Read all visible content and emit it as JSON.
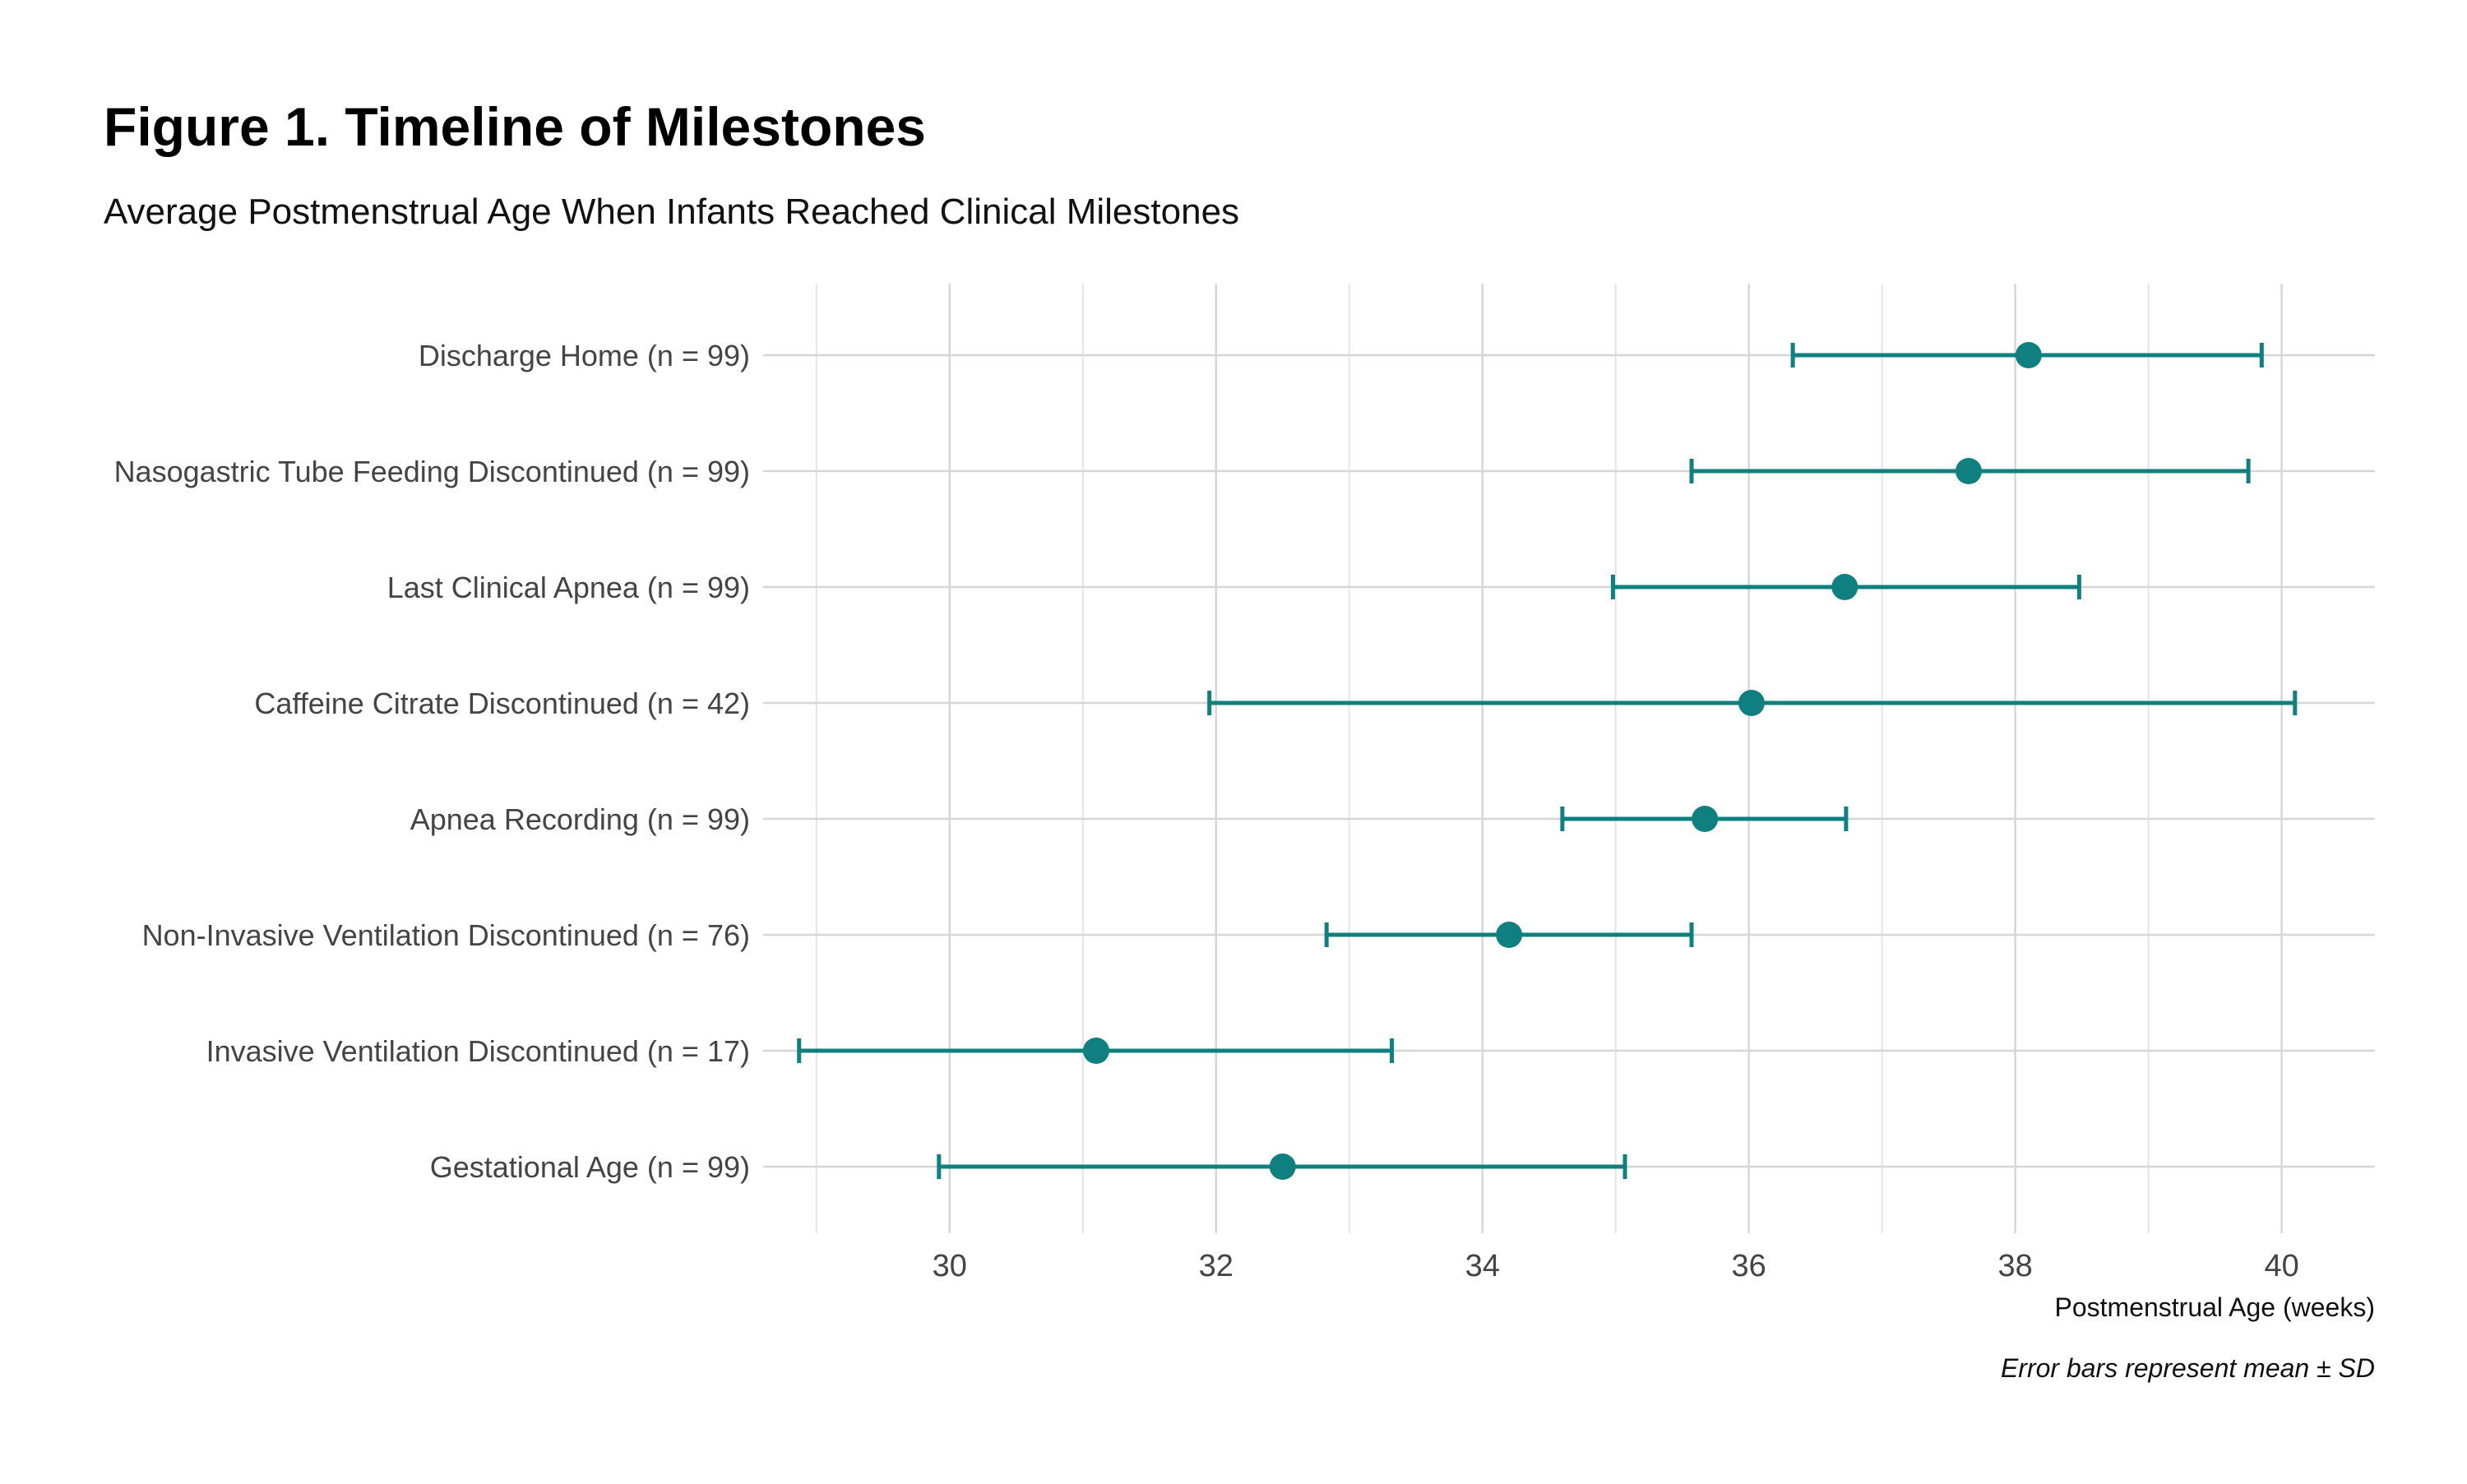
{
  "chart_data": {
    "type": "scatter",
    "title": "Figure 1. Timeline of Milestones",
    "subtitle": "Average Postmenstrual Age When Infants Reached Clinical Milestones",
    "xlabel": "Postmenstrual Age (weeks)",
    "caption": "Error bars represent mean ± SD",
    "xlim": [
      28.6,
      40.7
    ],
    "xticks": [
      "30",
      "32",
      "34",
      "36",
      "38",
      "40"
    ],
    "grid": true,
    "color": "#0f7f7f",
    "categories": [
      "Discharge Home (n = 99)",
      "Nasogastric Tube Feeding Discontinued (n = 99)",
      "Last Clinical Apnea (n = 99)",
      "Caffeine Citrate Discontinued (n = 42)",
      "Apnea Recording (n = 99)",
      "Non-Invasive Ventilation Discontinued (n = 76)",
      "Invasive Ventilation Discontinued (n = 17)",
      "Gestational Age (n = 99)"
    ],
    "series": [
      {
        "mean": [
          38.1,
          37.65,
          36.72,
          36.02,
          35.67,
          34.2,
          31.1,
          32.5
        ],
        "lower": [
          36.33,
          35.57,
          34.98,
          31.95,
          34.6,
          32.83,
          28.87,
          29.92
        ],
        "upper": [
          39.85,
          39.75,
          38.48,
          40.1,
          36.73,
          35.57,
          33.32,
          35.07
        ]
      }
    ]
  }
}
